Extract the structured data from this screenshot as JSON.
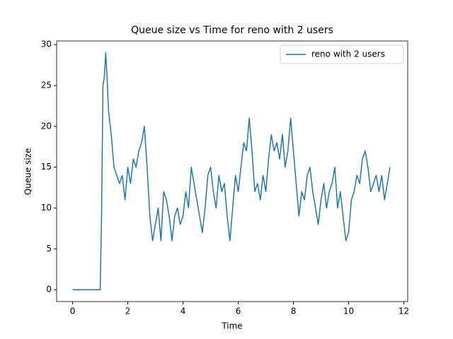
{
  "chart_data": {
    "type": "line",
    "title": "Queue size vs Time for reno with 2 users",
    "x_label": "Time",
    "y_label": "Queue size",
    "xlim": [
      -0.578,
      12.14
    ],
    "ylim": [
      -1.45,
      30.45
    ],
    "xticks": [
      0,
      2,
      4,
      6,
      8,
      10,
      12
    ],
    "yticks": [
      0,
      5,
      10,
      15,
      20,
      25,
      30
    ],
    "legend": "upper right",
    "x": [
      0,
      1.0,
      1.05,
      1.1,
      1.15,
      1.2,
      1.25,
      1.3,
      1.4,
      1.5,
      1.6,
      1.7,
      1.8,
      1.9,
      2.0,
      2.1,
      2.2,
      2.3,
      2.4,
      2.5,
      2.6,
      2.7,
      2.8,
      2.9,
      3.0,
      3.1,
      3.2,
      3.3,
      3.4,
      3.5,
      3.6,
      3.7,
      3.8,
      3.9,
      4.0,
      4.1,
      4.2,
      4.3,
      4.4,
      4.5,
      4.6,
      4.7,
      4.8,
      4.9,
      5.0,
      5.1,
      5.2,
      5.3,
      5.4,
      5.5,
      5.6,
      5.7,
      5.8,
      5.9,
      6.0,
      6.1,
      6.2,
      6.3,
      6.4,
      6.5,
      6.6,
      6.7,
      6.8,
      6.9,
      7.0,
      7.1,
      7.2,
      7.3,
      7.4,
      7.5,
      7.6,
      7.7,
      7.8,
      7.9,
      8.0,
      8.1,
      8.2,
      8.3,
      8.4,
      8.5,
      8.6,
      8.7,
      8.8,
      8.9,
      9.0,
      9.1,
      9.2,
      9.3,
      9.4,
      9.5,
      9.6,
      9.7,
      9.8,
      9.9,
      10.0,
      10.1,
      10.2,
      10.3,
      10.4,
      10.5,
      10.6,
      10.7,
      10.8,
      10.9,
      11.0,
      11.1,
      11.2,
      11.3,
      11.4,
      11.5
    ],
    "series": [
      {
        "name": "reno with 2 users",
        "color": "#1f77b4",
        "values": [
          0,
          0,
          9,
          25,
          26,
          29,
          26,
          22,
          19,
          15,
          14,
          13,
          14,
          11,
          15,
          13,
          16,
          15,
          17,
          18,
          20,
          15,
          9,
          6,
          8,
          10,
          6,
          12,
          11,
          9,
          6,
          9,
          10,
          8,
          9,
          12,
          10,
          15,
          13,
          11,
          9,
          7,
          10,
          14,
          15,
          12,
          10,
          14,
          12,
          13,
          9,
          6,
          10,
          14,
          12,
          15,
          18,
          17,
          21,
          17,
          12,
          13,
          11,
          14,
          12,
          16,
          19,
          17,
          18,
          16,
          19,
          15,
          17,
          21,
          17,
          13,
          9,
          12,
          11,
          14,
          15,
          12,
          10,
          8,
          11,
          13,
          10,
          12,
          13,
          15,
          10,
          12,
          9,
          6,
          7,
          11,
          12,
          14,
          13,
          16,
          17,
          15,
          12,
          13,
          14,
          12,
          14,
          11,
          13,
          15
        ]
      }
    ]
  }
}
